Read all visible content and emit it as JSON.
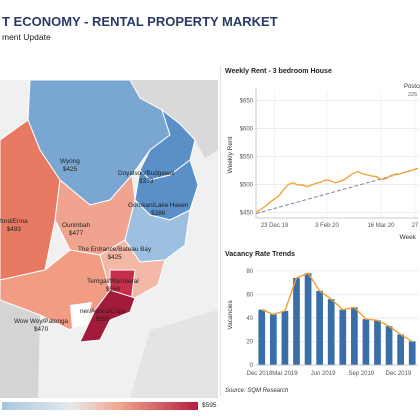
{
  "header": {
    "title": "T ECONOMY - RENTAL PROPERTY MARKET",
    "subtitle": "ment Update"
  },
  "map": {
    "regions": [
      {
        "name": "Wyong",
        "value": "$425",
        "color": "#7aa6d2"
      },
      {
        "name": "Doyalson/Budgewoi",
        "value": "$373",
        "color": "#5b8fc7"
      },
      {
        "name": "Gorokan/Lake Haven",
        "value": "$386",
        "color": "#5b8fc7"
      },
      {
        "name": "ford/Erina",
        "value": "$493",
        "color": "#e87a63"
      },
      {
        "name": "Ourimbah",
        "value": "$477",
        "color": "#f0a48f"
      },
      {
        "name": "The Entrance/Bateau Bay",
        "value": "$425",
        "color": "#9dbfe0"
      },
      {
        "name": "Terrigal/Wamberal",
        "value": "$568",
        "color": "#c62f4a"
      },
      {
        "name": "Wow Woy/Patonga",
        "value": "$470",
        "color": "#f29c84"
      },
      {
        "name": "ner/Avoca/Copa",
        "value": "$595",
        "color": "#a31b3b"
      }
    ],
    "legend_max": "$595"
  },
  "weekly_rent": {
    "title": "Weekly Rent - 3 bedroom House",
    "annotation_label": "Postco",
    "annotation_value": "225"
  },
  "vacancy": {
    "title": "Vacancy Rate Trends"
  },
  "source": "Source: SQM Research",
  "chart_data": [
    {
      "type": "line",
      "title": "Weekly Rent - 3 bedroom House",
      "xlabel": "Week",
      "ylabel": "Weekly Rent",
      "x_tick_labels": [
        "23 Dec 19",
        "3 Feb 20",
        "16 Mar 20",
        "27"
      ],
      "y_tick_labels": [
        "$450",
        "$500",
        "$550",
        "$600",
        "$650"
      ],
      "ylim": [
        440,
        665
      ],
      "x": [
        0,
        0.3,
        0.6,
        0.9,
        1.2,
        1.5,
        1.8,
        2.1,
        2.4,
        2.7,
        3.0,
        3.3,
        3.6,
        3.9,
        4.2,
        4.5,
        4.8,
        5.1,
        5.4,
        5.7,
        6.0,
        6.3,
        6.6,
        6.9,
        7.2,
        7.5,
        7.8,
        8.1,
        8.4,
        8.7,
        9.0,
        9.3,
        9.6,
        9.9,
        10.2,
        10.5
      ],
      "values": [
        451,
        455,
        461,
        468,
        474,
        480,
        491,
        500,
        503,
        499,
        499,
        496,
        499,
        502,
        504,
        508,
        507,
        503,
        505,
        508,
        514,
        520,
        523,
        519,
        517,
        515,
        514,
        509,
        510,
        515,
        518,
        519,
        521,
        524,
        526,
        529
      ],
      "trend": [
        [
          0,
          448
        ],
        [
          10.5,
          528
        ]
      ],
      "grid": true
    },
    {
      "type": "bar",
      "title": "Vacancy Rate Trends",
      "ylabel": "Vacancies",
      "x_tick_labels": [
        "Dec 2018",
        "Mar 2019",
        "Jun 2019",
        "Sep 2019",
        "Dec 2019"
      ],
      "y_tick_labels": [
        "0",
        "20",
        "40",
        "60",
        "80"
      ],
      "ylim": [
        0,
        85
      ],
      "values": [
        47,
        43,
        46,
        74,
        78,
        63,
        56,
        47,
        49,
        39,
        38,
        33,
        26,
        20
      ],
      "line_values": [
        47,
        43,
        46,
        74,
        78,
        63,
        56,
        47,
        49,
        39,
        38,
        33,
        26,
        20
      ],
      "colors": {
        "bar": "#3a6ea8",
        "line": "#f0a030"
      },
      "grid": true
    }
  ]
}
